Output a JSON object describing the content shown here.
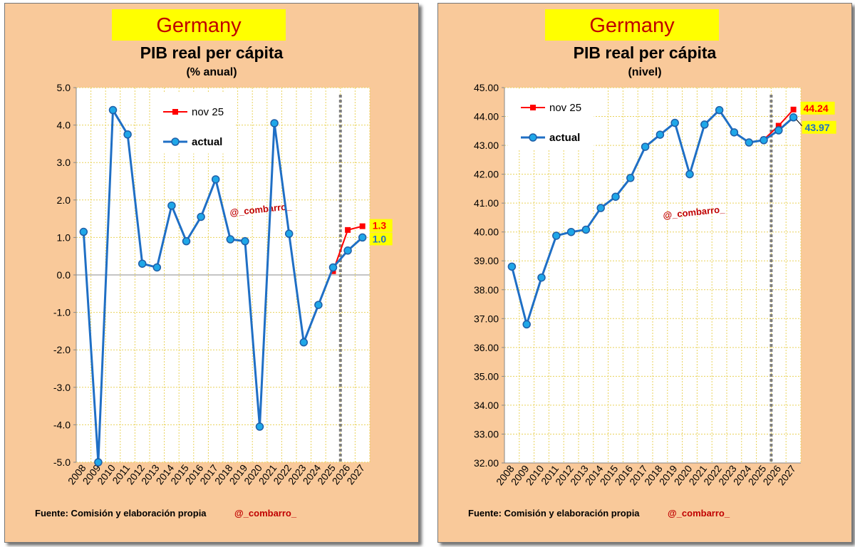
{
  "panels": [
    {
      "banner": "Germany",
      "title": "PIB real per cápita",
      "subtitle": "(% anual)",
      "footer": "Fuente: Comisión y elaboración propia",
      "handle": "@_combarro_"
    },
    {
      "banner": "Germany",
      "title": "PIB real per cápita",
      "subtitle": "(nivel)",
      "footer": "Fuente: Comisión y elaboración propia",
      "handle": "@_combarro_"
    }
  ],
  "chart_data": [
    {
      "type": "line",
      "title": "PIB real per cápita",
      "subtitle": "(% anual)",
      "x": [
        "2008",
        "2009",
        "2010",
        "2011",
        "2012",
        "2013",
        "2014",
        "2015",
        "2016",
        "2017",
        "2018",
        "2019",
        "2020",
        "2021",
        "2022",
        "2023",
        "2024",
        "2025",
        "2026",
        "2027"
      ],
      "ylim": [
        -5.0,
        5.0
      ],
      "ytick_step": 1.0,
      "ytick_decimals": 1,
      "grid": true,
      "legend_position": "top-left",
      "forecast_divider_after": "2025",
      "watermark": "@_combarro_",
      "colors": {
        "actual": "#1f6fc5",
        "actual_marker": "#1fa7e8",
        "nov25": "#ff0000"
      },
      "series": [
        {
          "name": "nov 25",
          "key": "nov25",
          "values": [
            null,
            null,
            null,
            null,
            null,
            null,
            null,
            null,
            null,
            null,
            null,
            null,
            null,
            null,
            null,
            null,
            null,
            0.1,
            1.2,
            1.3
          ],
          "end_label": "1.3"
        },
        {
          "name": "actual",
          "key": "actual",
          "values": [
            1.15,
            -5.0,
            4.4,
            3.75,
            0.3,
            0.2,
            1.85,
            0.9,
            1.55,
            2.55,
            0.95,
            0.9,
            -4.05,
            4.05,
            1.1,
            -1.8,
            -0.8,
            0.2,
            0.65,
            1.0
          ],
          "end_label": "1.0"
        }
      ]
    },
    {
      "type": "line",
      "title": "PIB real per cápita",
      "subtitle": "(nivel)",
      "x": [
        "2008",
        "2009",
        "2010",
        "2011",
        "2012",
        "2013",
        "2014",
        "2015",
        "2016",
        "2017",
        "2018",
        "2019",
        "2020",
        "2021",
        "2022",
        "2023",
        "2024",
        "2025",
        "2026",
        "2027"
      ],
      "ylim": [
        32.0,
        45.0
      ],
      "ytick_step": 1.0,
      "ytick_decimals": 2,
      "grid": true,
      "legend_position": "top-left",
      "forecast_divider_after": "2025",
      "watermark": "@_combarro_",
      "colors": {
        "actual": "#1f6fc5",
        "actual_marker": "#1fa7e8",
        "nov25": "#ff0000"
      },
      "series": [
        {
          "name": "nov 25",
          "key": "nov25",
          "values": [
            null,
            null,
            null,
            null,
            null,
            null,
            null,
            null,
            null,
            null,
            null,
            null,
            null,
            null,
            null,
            null,
            null,
            43.2,
            43.68,
            44.24
          ],
          "end_label": "44.24"
        },
        {
          "name": "actual",
          "key": "actual",
          "values": [
            38.8,
            36.8,
            38.42,
            39.87,
            40.0,
            40.08,
            40.83,
            41.22,
            41.87,
            42.95,
            43.37,
            43.78,
            42.0,
            43.72,
            44.22,
            43.45,
            43.1,
            43.18,
            43.52,
            43.97
          ],
          "end_label": "43.97"
        }
      ]
    }
  ]
}
